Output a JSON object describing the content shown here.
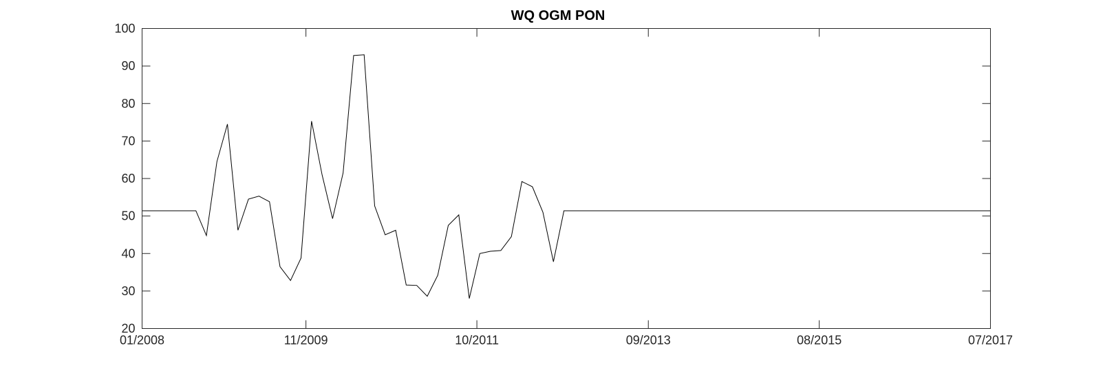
{
  "chart_data": {
    "type": "line",
    "title": "WQ OGM PON",
    "xlabel": "",
    "ylabel": "",
    "x_axis": {
      "type": "date",
      "range": [
        "2008-01-01",
        "2017-07-01"
      ],
      "ticks": [
        {
          "date": "2008-01-01",
          "label": "01/2008"
        },
        {
          "date": "2009-11-01",
          "label": "11/2009"
        },
        {
          "date": "2011-10-01",
          "label": "10/2011"
        },
        {
          "date": "2013-09-01",
          "label": "09/2013"
        },
        {
          "date": "2015-08-01",
          "label": "08/2015"
        },
        {
          "date": "2017-07-01",
          "label": "07/2017"
        }
      ]
    },
    "y_axis": {
      "range": [
        20,
        100
      ],
      "ticks": [
        20,
        30,
        40,
        50,
        60,
        70,
        80,
        90,
        100
      ]
    },
    "grid": false,
    "series": [
      {
        "color": "#000000",
        "points": [
          {
            "x": "2008-01-01",
            "y": 51.4
          },
          {
            "x": "2008-08-08",
            "y": 51.4
          },
          {
            "x": "2008-09-20",
            "y": 44.8
          },
          {
            "x": "2008-11-02",
            "y": 64.5
          },
          {
            "x": "2008-12-15",
            "y": 74.5
          },
          {
            "x": "2009-01-27",
            "y": 46.2
          },
          {
            "x": "2009-03-11",
            "y": 54.5
          },
          {
            "x": "2009-04-23",
            "y": 55.3
          },
          {
            "x": "2009-06-05",
            "y": 53.8
          },
          {
            "x": "2009-07-18",
            "y": 36.5
          },
          {
            "x": "2009-08-30",
            "y": 32.8
          },
          {
            "x": "2009-10-12",
            "y": 38.8
          },
          {
            "x": "2009-11-24",
            "y": 75.3
          },
          {
            "x": "2010-01-06",
            "y": 61.0
          },
          {
            "x": "2010-02-18",
            "y": 49.3
          },
          {
            "x": "2010-04-02",
            "y": 61.5
          },
          {
            "x": "2010-05-15",
            "y": 92.8
          },
          {
            "x": "2010-06-27",
            "y": 93.0
          },
          {
            "x": "2010-08-09",
            "y": 52.7
          },
          {
            "x": "2010-09-21",
            "y": 45.0
          },
          {
            "x": "2010-11-03",
            "y": 46.2
          },
          {
            "x": "2010-12-16",
            "y": 31.6
          },
          {
            "x": "2011-01-28",
            "y": 31.5
          },
          {
            "x": "2011-03-12",
            "y": 28.6
          },
          {
            "x": "2011-04-24",
            "y": 34.2
          },
          {
            "x": "2011-06-06",
            "y": 47.5
          },
          {
            "x": "2011-07-19",
            "y": 50.3
          },
          {
            "x": "2011-08-31",
            "y": 28.0
          },
          {
            "x": "2011-10-13",
            "y": 40.0
          },
          {
            "x": "2011-11-25",
            "y": 40.6
          },
          {
            "x": "2012-01-07",
            "y": 40.8
          },
          {
            "x": "2012-02-19",
            "y": 44.5
          },
          {
            "x": "2012-04-02",
            "y": 59.2
          },
          {
            "x": "2012-05-15",
            "y": 57.8
          },
          {
            "x": "2012-06-27",
            "y": 51.0
          },
          {
            "x": "2012-08-09",
            "y": 37.8
          },
          {
            "x": "2012-09-21",
            "y": 51.4
          },
          {
            "x": "2017-07-01",
            "y": 51.4
          }
        ]
      }
    ]
  }
}
